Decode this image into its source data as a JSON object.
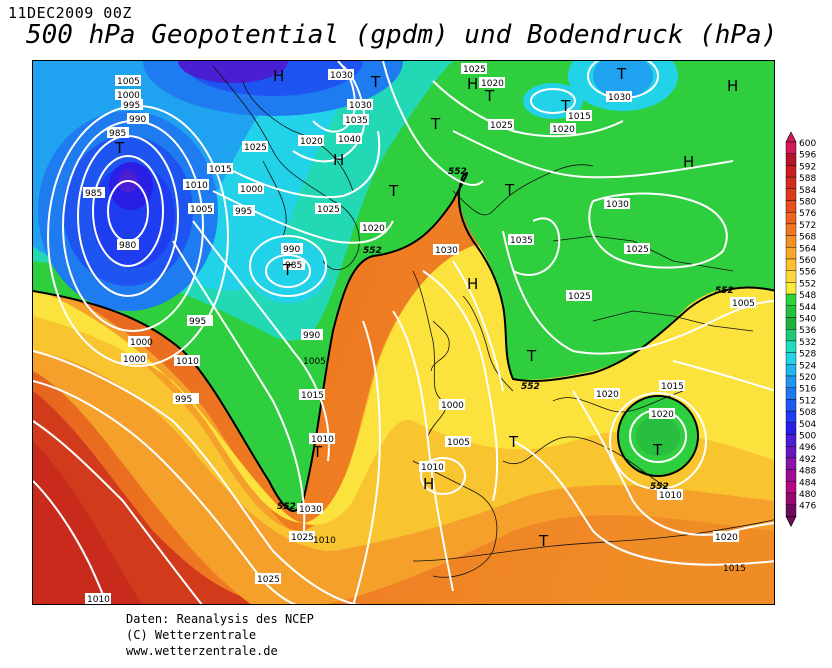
{
  "header": {
    "timestamp": "11DEC2009 00Z",
    "title": "500 hPa Geopotential (gpdm) und Bodendruck (hPa)"
  },
  "legend": {
    "levels": [
      "600",
      "596",
      "592",
      "588",
      "584",
      "580",
      "576",
      "572",
      "568",
      "564",
      "560",
      "556",
      "552",
      "548",
      "544",
      "540",
      "536",
      "532",
      "528",
      "524",
      "520",
      "516",
      "512",
      "508",
      "504",
      "500",
      "496",
      "492",
      "488",
      "484",
      "480",
      "476"
    ],
    "colors": [
      "#d21a5a",
      "#b41428",
      "#c81e1e",
      "#d22c1e",
      "#dc3c1e",
      "#e64e1e",
      "#ec6420",
      "#f07a22",
      "#f49028",
      "#f8a82c",
      "#fcc030",
      "#fcd83a",
      "#f8ea3a",
      "#2ed23a",
      "#24c23a",
      "#1eb23a",
      "#20c878",
      "#22dcc0",
      "#22d2e6",
      "#20b4f0",
      "#2096f0",
      "#2078f0",
      "#1e5af0",
      "#1e3cf0",
      "#2a1ee6",
      "#4a1ed2",
      "#6a14be",
      "#8a14aa",
      "#a00a96",
      "#b40a82",
      "#960a6e",
      "#6e0a5a"
    ]
  },
  "map": {
    "pressure_labels": [
      "1005",
      "1000",
      "995",
      "990",
      "985",
      "985",
      "980",
      "1010",
      "1015",
      "1005",
      "1000",
      "995",
      "1030",
      "1030",
      "1035",
      "1040",
      "1020",
      "1025",
      "1025",
      "990",
      "985",
      "1020",
      "1025",
      "1025",
      "1020",
      "1015",
      "1020",
      "1030",
      "1030",
      "1035",
      "1030",
      "1025",
      "1025",
      "1005",
      "995",
      "1000",
      "990",
      "1000",
      "1010",
      "995",
      "1015",
      "1000",
      "1010",
      "1005",
      "1010",
      "1015",
      "1020",
      "1020",
      "1030",
      "1025",
      "1025",
      "1010",
      "1020",
      "1010",
      "1005",
      "1010",
      "1015"
    ],
    "height_labels": [
      "552",
      "552",
      "552",
      "552",
      "552",
      "552"
    ],
    "pressure_centers": [
      "H",
      "T",
      "T",
      "H",
      "T",
      "H",
      "T",
      "T",
      "T",
      "H",
      "H",
      "T",
      "T",
      "H",
      "T",
      "T",
      "H",
      "T",
      "T",
      "T",
      "T"
    ]
  },
  "credits": {
    "line1": "Daten: Reanalysis des NCEP",
    "line2": "(C) Wetterzentrale",
    "line3": "www.wetterzentrale.de"
  }
}
